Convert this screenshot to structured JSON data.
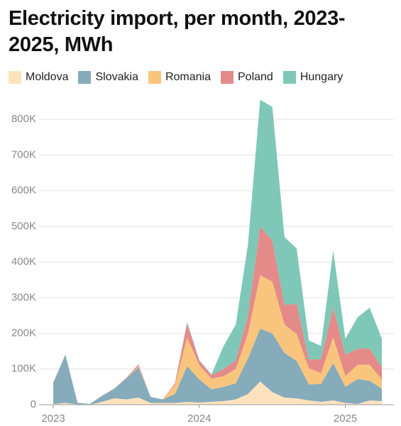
{
  "chart_data": {
    "type": "stacked-area",
    "title": "Electricity import, per month, 2023-2025, MWh",
    "categories": [
      "2023",
      null,
      null,
      null,
      null,
      null,
      null,
      null,
      null,
      null,
      null,
      null,
      "2024",
      null,
      null,
      null,
      null,
      null,
      null,
      null,
      null,
      null,
      null,
      null,
      "2025",
      null,
      null,
      null
    ],
    "series": [
      {
        "name": "Moldova",
        "color": "#fde3bd",
        "values": [
          2000,
          5000,
          1000,
          0,
          8000,
          18000,
          15000,
          20000,
          5000,
          5000,
          5000,
          8000,
          6000,
          8000,
          10000,
          15000,
          30000,
          65000,
          35000,
          20000,
          18000,
          12000,
          8000,
          12000,
          5000,
          2000,
          12000,
          10000
        ]
      },
      {
        "name": "Slovakia",
        "color": "#86abbb",
        "values": [
          60000,
          135000,
          4000,
          2000,
          17000,
          27000,
          58000,
          85000,
          17000,
          10000,
          25000,
          100000,
          65000,
          35000,
          40000,
          45000,
          100000,
          148000,
          165000,
          125000,
          105000,
          45000,
          50000,
          105000,
          45000,
          70000,
          55000,
          35000
        ]
      },
      {
        "name": "Romania",
        "color": "#f9c57d",
        "values": [
          0,
          0,
          0,
          0,
          0,
          0,
          0,
          3000,
          0,
          0,
          25000,
          80000,
          40000,
          30000,
          30000,
          40000,
          70000,
          150000,
          145000,
          80000,
          75000,
          45000,
          30000,
          72000,
          30000,
          40000,
          45000,
          25000
        ]
      },
      {
        "name": "Poland",
        "color": "#e48b89",
        "values": [
          0,
          0,
          0,
          0,
          0,
          0,
          2000,
          5000,
          0,
          0,
          5000,
          40000,
          12000,
          10000,
          20000,
          25000,
          50000,
          137000,
          115000,
          55000,
          85000,
          25000,
          40000,
          85000,
          60000,
          45000,
          45000,
          35000
        ]
      },
      {
        "name": "Hungary",
        "color": "#7fc8b8",
        "values": [
          0,
          0,
          0,
          0,
          0,
          0,
          0,
          0,
          0,
          0,
          0,
          4000,
          2000,
          2000,
          65000,
          100000,
          200000,
          355000,
          375000,
          190000,
          155000,
          53000,
          37000,
          158000,
          45000,
          88000,
          115000,
          80000
        ]
      }
    ],
    "ylim": [
      0,
      860000
    ],
    "yticks": [
      0,
      {
        "value": 100000,
        "label": "100K"
      },
      {
        "value": 200000,
        "label": "200K"
      },
      {
        "value": 300000,
        "label": "300K"
      },
      {
        "value": 400000,
        "label": "400K"
      },
      {
        "value": 500000,
        "label": "500K"
      },
      {
        "value": 600000,
        "label": "600K"
      },
      {
        "value": 700000,
        "label": "700K"
      },
      {
        "value": 800000,
        "label": "800K"
      }
    ],
    "grid": true
  }
}
